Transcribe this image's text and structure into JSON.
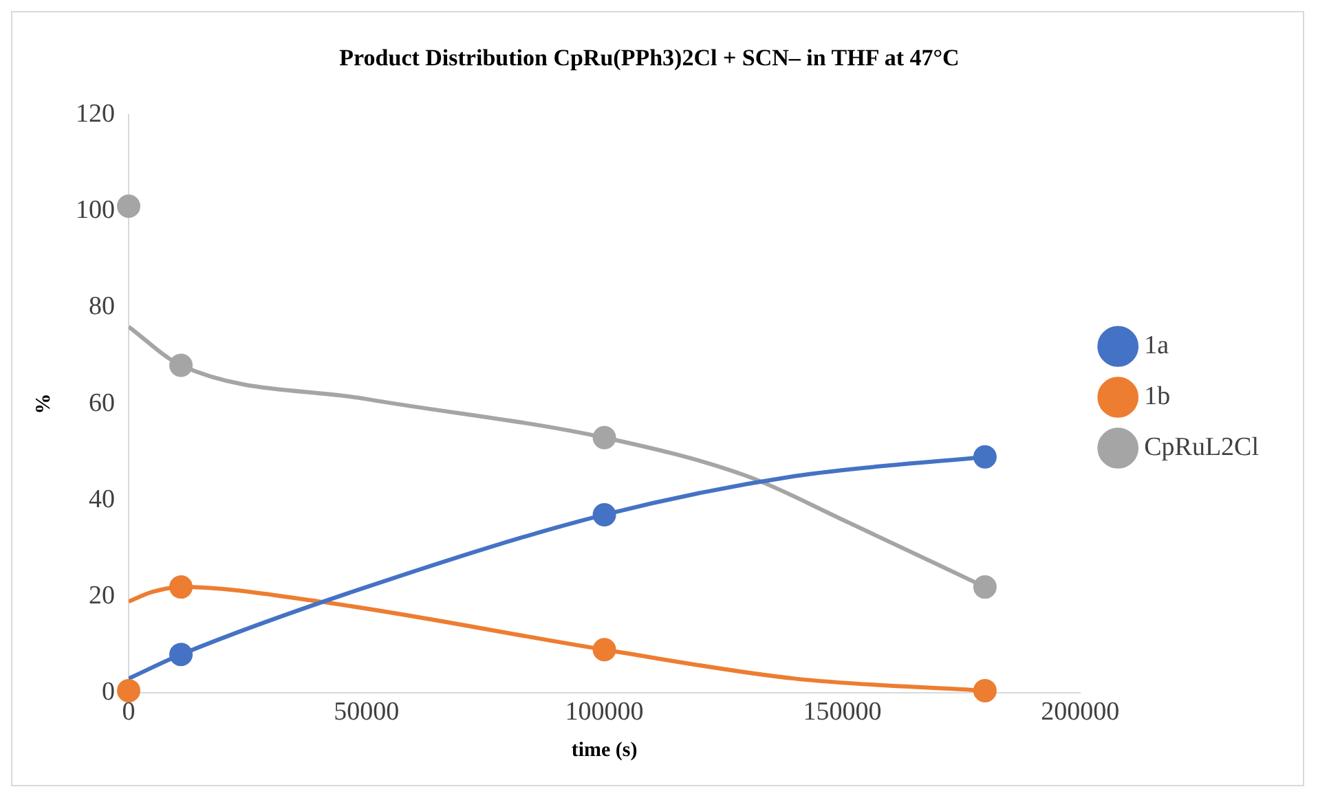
{
  "chart_data": {
    "type": "scatter",
    "title": "Product Distribution CpRu(PPh3)2Cl + SCN– in THF at 47°C",
    "xlabel": "time (s)",
    "ylabel": "%",
    "xlim": [
      0,
      200000
    ],
    "xticks": [
      0,
      50000,
      100000,
      150000,
      200000
    ],
    "ylim": [
      0,
      120
    ],
    "yticks": [
      0,
      20,
      40,
      60,
      80,
      100,
      120
    ],
    "grid": false,
    "legend": "right",
    "marker": "circle",
    "series": [
      {
        "name": "1a",
        "color": "#4472c4",
        "x": [
          11000,
          100000,
          180000
        ],
        "values": [
          8,
          37,
          49
        ]
      },
      {
        "name": "1b",
        "color": "#ed7d31",
        "x": [
          0,
          11000,
          100000,
          180000
        ],
        "values": [
          0.5,
          22,
          9,
          0.5
        ]
      },
      {
        "name": "CpRuL2Cl",
        "color": "#a5a5a5",
        "x": [
          0,
          11000,
          100000,
          180000
        ],
        "values": [
          101,
          68,
          53,
          22
        ]
      },
      {
        "type": "line",
        "marker": "none",
        "color": "#4472c4",
        "x": [
          0,
          11000,
          50000,
          100000,
          140000,
          180000
        ],
        "values": [
          3,
          8,
          22,
          37,
          45,
          49
        ]
      },
      {
        "type": "line",
        "marker": "none",
        "color": "#ed7d31",
        "x": [
          0,
          5000,
          11000,
          40000,
          100000,
          140000,
          180000
        ],
        "values": [
          19,
          21,
          22,
          19,
          9,
          3,
          0.5
        ]
      },
      {
        "type": "line",
        "marker": "none",
        "color": "#a5a5a5",
        "x": [
          0,
          11000,
          50000,
          100000,
          130000,
          150000,
          180000
        ],
        "values": [
          76,
          68,
          61,
          53,
          45,
          36,
          22
        ]
      }
    ]
  }
}
